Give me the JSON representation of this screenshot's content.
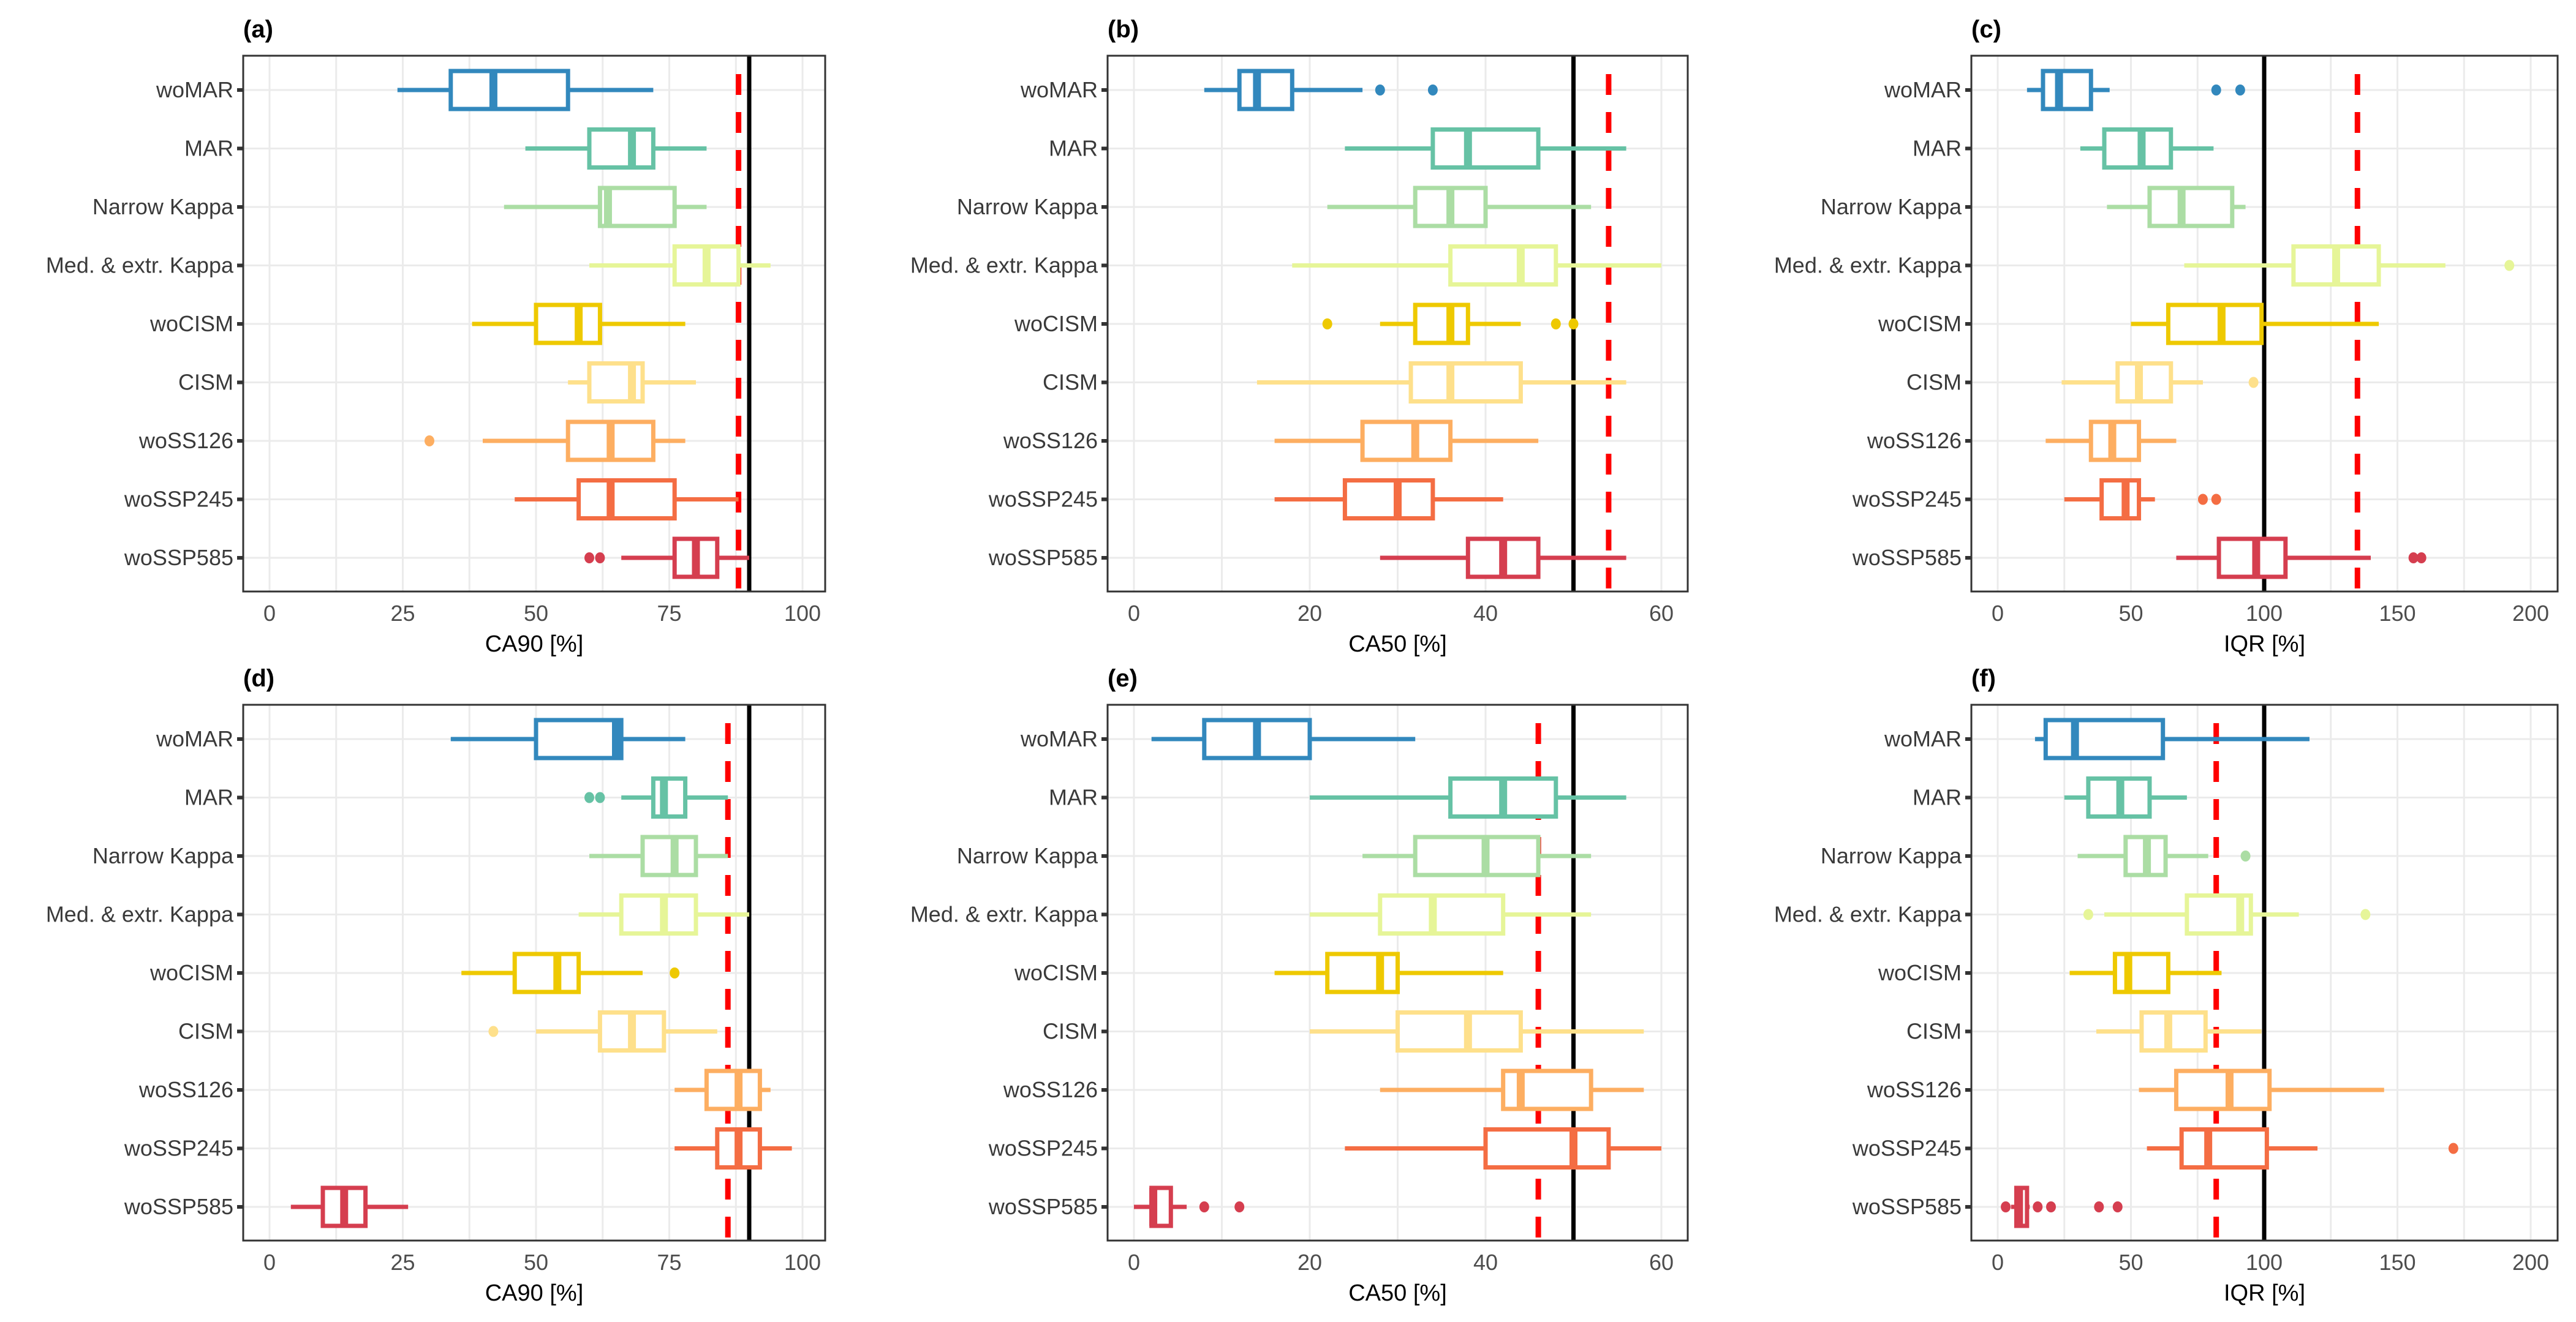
{
  "chart_data": [
    {
      "type": "boxplot",
      "panel": "(a)",
      "xlabel": "CA90 [%]",
      "xlim": [
        0,
        100
      ],
      "xticks": [
        0,
        25,
        50,
        75,
        100
      ],
      "grid": true,
      "reference_lines": [
        {
          "value": 90,
          "style": "solid",
          "color": "#000000"
        },
        {
          "value": 88,
          "style": "dashed",
          "color": "#FF0000"
        }
      ],
      "categories": [
        "woMAR",
        "MAR",
        "Narrow Kappa",
        "Med. & extr. Kappa",
        "woCISM",
        "CISM",
        "woSS126",
        "woSSP245",
        "woSSP585"
      ],
      "boxes": [
        {
          "min": 24,
          "q1": 34,
          "median": 42,
          "q3": 56,
          "max": 72,
          "outliers": []
        },
        {
          "min": 48,
          "q1": 60,
          "median": 68,
          "q3": 72,
          "max": 82,
          "outliers": []
        },
        {
          "min": 44,
          "q1": 62,
          "median": 63.5,
          "q3": 76,
          "max": 82,
          "outliers": []
        },
        {
          "min": 60,
          "q1": 76,
          "median": 82,
          "q3": 88,
          "max": 94,
          "outliers": []
        },
        {
          "min": 38,
          "q1": 50,
          "median": 58,
          "q3": 62,
          "max": 78,
          "outliers": []
        },
        {
          "min": 56,
          "q1": 60,
          "median": 68,
          "q3": 70,
          "max": 80,
          "outliers": []
        },
        {
          "min": 40,
          "q1": 56,
          "median": 64,
          "q3": 72,
          "max": 78,
          "outliers": [
            30
          ]
        },
        {
          "min": 46,
          "q1": 58,
          "median": 64,
          "q3": 76,
          "max": 88,
          "outliers": []
        },
        {
          "min": 66,
          "q1": 76,
          "median": 80,
          "q3": 84,
          "max": 90,
          "outliers": [
            60,
            62
          ]
        }
      ]
    },
    {
      "type": "boxplot",
      "panel": "(b)",
      "xlabel": "CA50 [%]",
      "xlim": [
        0,
        60
      ],
      "xticks": [
        0,
        20,
        40,
        60
      ],
      "grid": true,
      "reference_lines": [
        {
          "value": 50,
          "style": "solid",
          "color": "#000000"
        },
        {
          "value": 54,
          "style": "dashed",
          "color": "#FF0000"
        }
      ],
      "categories": [
        "woMAR",
        "MAR",
        "Narrow Kappa",
        "Med. & extr. Kappa",
        "woCISM",
        "CISM",
        "woSS126",
        "woSSP245",
        "woSSP585"
      ],
      "boxes": [
        {
          "min": 8,
          "q1": 12,
          "median": 14,
          "q3": 18,
          "max": 26,
          "outliers": [
            28,
            34
          ]
        },
        {
          "min": 24,
          "q1": 34,
          "median": 38,
          "q3": 46,
          "max": 56,
          "outliers": []
        },
        {
          "min": 22,
          "q1": 32,
          "median": 36,
          "q3": 40,
          "max": 52,
          "outliers": []
        },
        {
          "min": 18,
          "q1": 36,
          "median": 44,
          "q3": 48,
          "max": 60,
          "outliers": []
        },
        {
          "min": 28,
          "q1": 32,
          "median": 36,
          "q3": 38,
          "max": 44,
          "outliers": [
            22,
            48,
            50
          ]
        },
        {
          "min": 14,
          "q1": 31.5,
          "median": 36,
          "q3": 44,
          "max": 56,
          "outliers": []
        },
        {
          "min": 16,
          "q1": 26,
          "median": 32,
          "q3": 36,
          "max": 46,
          "outliers": []
        },
        {
          "min": 16,
          "q1": 24,
          "median": 30,
          "q3": 34,
          "max": 42,
          "outliers": []
        },
        {
          "min": 28,
          "q1": 38,
          "median": 42,
          "q3": 46,
          "max": 56,
          "outliers": []
        }
      ]
    },
    {
      "type": "boxplot",
      "panel": "(c)",
      "xlabel": "IQR [%]",
      "xlim": [
        0,
        200
      ],
      "xticks": [
        0,
        50,
        100,
        150,
        200
      ],
      "grid": true,
      "reference_lines": [
        {
          "value": 100,
          "style": "solid",
          "color": "#000000"
        },
        {
          "value": 135,
          "style": "dashed",
          "color": "#FF0000"
        }
      ],
      "categories": [
        "woMAR",
        "MAR",
        "Narrow Kappa",
        "Med. & extr. Kappa",
        "woCISM",
        "CISM",
        "woSS126",
        "woSSP245",
        "woSSP585"
      ],
      "boxes": [
        {
          "min": 11,
          "q1": 17,
          "median": 23,
          "q3": 35,
          "max": 42,
          "outliers": [
            82,
            91
          ]
        },
        {
          "min": 31,
          "q1": 40,
          "median": 54,
          "q3": 65,
          "max": 81,
          "outliers": []
        },
        {
          "min": 41,
          "q1": 57,
          "median": 69,
          "q3": 88,
          "max": 93,
          "outliers": []
        },
        {
          "min": 70,
          "q1": 111,
          "median": 127,
          "q3": 143,
          "max": 168,
          "outliers": [
            192
          ]
        },
        {
          "min": 50,
          "q1": 64,
          "median": 84,
          "q3": 99,
          "max": 143,
          "outliers": []
        },
        {
          "min": 24,
          "q1": 45,
          "median": 53,
          "q3": 65,
          "max": 77,
          "outliers": [
            96
          ]
        },
        {
          "min": 18,
          "q1": 35,
          "median": 43,
          "q3": 53,
          "max": 67,
          "outliers": []
        },
        {
          "min": 25,
          "q1": 39,
          "median": 48,
          "q3": 53,
          "max": 59,
          "outliers": [
            77,
            82
          ]
        },
        {
          "min": 67,
          "q1": 83,
          "median": 97,
          "q3": 108,
          "max": 140,
          "outliers": [
            156,
            159
          ]
        }
      ]
    },
    {
      "type": "boxplot",
      "panel": "(d)",
      "xlabel": "CA90 [%]",
      "xlim": [
        0,
        100
      ],
      "xticks": [
        0,
        25,
        50,
        75,
        100
      ],
      "grid": true,
      "reference_lines": [
        {
          "value": 90,
          "style": "solid",
          "color": "#000000"
        },
        {
          "value": 86,
          "style": "dashed",
          "color": "#FF0000"
        }
      ],
      "categories": [
        "woMAR",
        "MAR",
        "Narrow Kappa",
        "Med. & extr. Kappa",
        "woCISM",
        "CISM",
        "woSS126",
        "woSSP245",
        "woSSP585"
      ],
      "boxes": [
        {
          "min": 34,
          "q1": 50,
          "median": 65,
          "q3": 66,
          "max": 78,
          "outliers": []
        },
        {
          "min": 66,
          "q1": 72,
          "median": 74,
          "q3": 78,
          "max": 86,
          "outliers": [
            60,
            62
          ]
        },
        {
          "min": 60,
          "q1": 70,
          "median": 76,
          "q3": 80,
          "max": 86,
          "outliers": []
        },
        {
          "min": 58,
          "q1": 66,
          "median": 74,
          "q3": 80,
          "max": 90,
          "outliers": []
        },
        {
          "min": 36,
          "q1": 46,
          "median": 54,
          "q3": 58,
          "max": 70,
          "outliers": [
            76
          ]
        },
        {
          "min": 50,
          "q1": 62,
          "median": 68,
          "q3": 74,
          "max": 84,
          "outliers": [
            42
          ]
        },
        {
          "min": 76,
          "q1": 82,
          "median": 88,
          "q3": 92,
          "max": 94,
          "outliers": []
        },
        {
          "min": 76,
          "q1": 84,
          "median": 88,
          "q3": 92,
          "max": 98,
          "outliers": []
        },
        {
          "min": 4,
          "q1": 10,
          "median": 14,
          "q3": 18,
          "max": 26,
          "outliers": []
        }
      ]
    },
    {
      "type": "boxplot",
      "panel": "(e)",
      "xlabel": "CA50 [%]",
      "xlim": [
        0,
        60
      ],
      "xticks": [
        0,
        20,
        40,
        60
      ],
      "grid": true,
      "reference_lines": [
        {
          "value": 50,
          "style": "solid",
          "color": "#000000"
        },
        {
          "value": 46,
          "style": "dashed",
          "color": "#FF0000"
        }
      ],
      "categories": [
        "woMAR",
        "MAR",
        "Narrow Kappa",
        "Med. & extr. Kappa",
        "woCISM",
        "CISM",
        "woSS126",
        "woSSP245",
        "woSSP585"
      ],
      "boxes": [
        {
          "min": 2,
          "q1": 8,
          "median": 14,
          "q3": 20,
          "max": 32,
          "outliers": []
        },
        {
          "min": 20,
          "q1": 36,
          "median": 42,
          "q3": 48,
          "max": 56,
          "outliers": []
        },
        {
          "min": 26,
          "q1": 32,
          "median": 40,
          "q3": 46,
          "max": 52,
          "outliers": []
        },
        {
          "min": 20,
          "q1": 28,
          "median": 34,
          "q3": 42,
          "max": 52,
          "outliers": []
        },
        {
          "min": 16,
          "q1": 22,
          "median": 28,
          "q3": 30,
          "max": 42,
          "outliers": []
        },
        {
          "min": 20,
          "q1": 30,
          "median": 38,
          "q3": 44,
          "max": 58,
          "outliers": []
        },
        {
          "min": 28,
          "q1": 42,
          "median": 44,
          "q3": 52,
          "max": 58,
          "outliers": []
        },
        {
          "min": 24,
          "q1": 40,
          "median": 50,
          "q3": 54,
          "max": 60,
          "outliers": []
        },
        {
          "min": 0,
          "q1": 2,
          "median": 2.2,
          "q3": 4.2,
          "max": 6,
          "outliers": [
            8,
            12
          ]
        }
      ]
    },
    {
      "type": "boxplot",
      "panel": "(f)",
      "xlabel": "IQR [%]",
      "xlim": [
        0,
        200
      ],
      "xticks": [
        0,
        50,
        100,
        150,
        200
      ],
      "grid": true,
      "reference_lines": [
        {
          "value": 100,
          "style": "solid",
          "color": "#000000"
        },
        {
          "value": 82,
          "style": "dashed",
          "color": "#FF0000"
        }
      ],
      "categories": [
        "woMAR",
        "MAR",
        "Narrow Kappa",
        "Med. & extr. Kappa",
        "woCISM",
        "CISM",
        "woSS126",
        "woSSP245",
        "woSSP585"
      ],
      "boxes": [
        {
          "min": 14,
          "q1": 18,
          "median": 29,
          "q3": 62,
          "max": 117,
          "outliers": []
        },
        {
          "min": 25,
          "q1": 34,
          "median": 46,
          "q3": 57,
          "max": 71,
          "outliers": []
        },
        {
          "min": 30,
          "q1": 48,
          "median": 56,
          "q3": 63,
          "max": 79,
          "outliers": [
            93
          ]
        },
        {
          "min": 40,
          "q1": 71,
          "median": 91,
          "q3": 95,
          "max": 113,
          "outliers": [
            34,
            138
          ]
        },
        {
          "min": 27,
          "q1": 44,
          "median": 49,
          "q3": 64,
          "max": 84,
          "outliers": []
        },
        {
          "min": 37,
          "q1": 54,
          "median": 64,
          "q3": 78,
          "max": 99,
          "outliers": []
        },
        {
          "min": 53,
          "q1": 67,
          "median": 87,
          "q3": 102,
          "max": 145,
          "outliers": []
        },
        {
          "min": 56,
          "q1": 69,
          "median": 79,
          "q3": 101,
          "max": 120,
          "outliers": [
            171
          ]
        },
        {
          "min": 5,
          "q1": 7,
          "median": 8,
          "q3": 11,
          "max": 12,
          "outliers": [
            3,
            15,
            20,
            38,
            45
          ]
        }
      ]
    }
  ],
  "category_colors": {
    "woMAR": "#3288BD",
    "MAR": "#66C2A5",
    "Narrow Kappa": "#ABDDA4",
    "Med. & extr. Kappa": "#E6F598",
    "woCISM": "#EEC900",
    "CISM": "#FEE08B",
    "woSS126": "#FDAE61",
    "woSSP245": "#F46D43",
    "woSSP585": "#D53E4F"
  }
}
